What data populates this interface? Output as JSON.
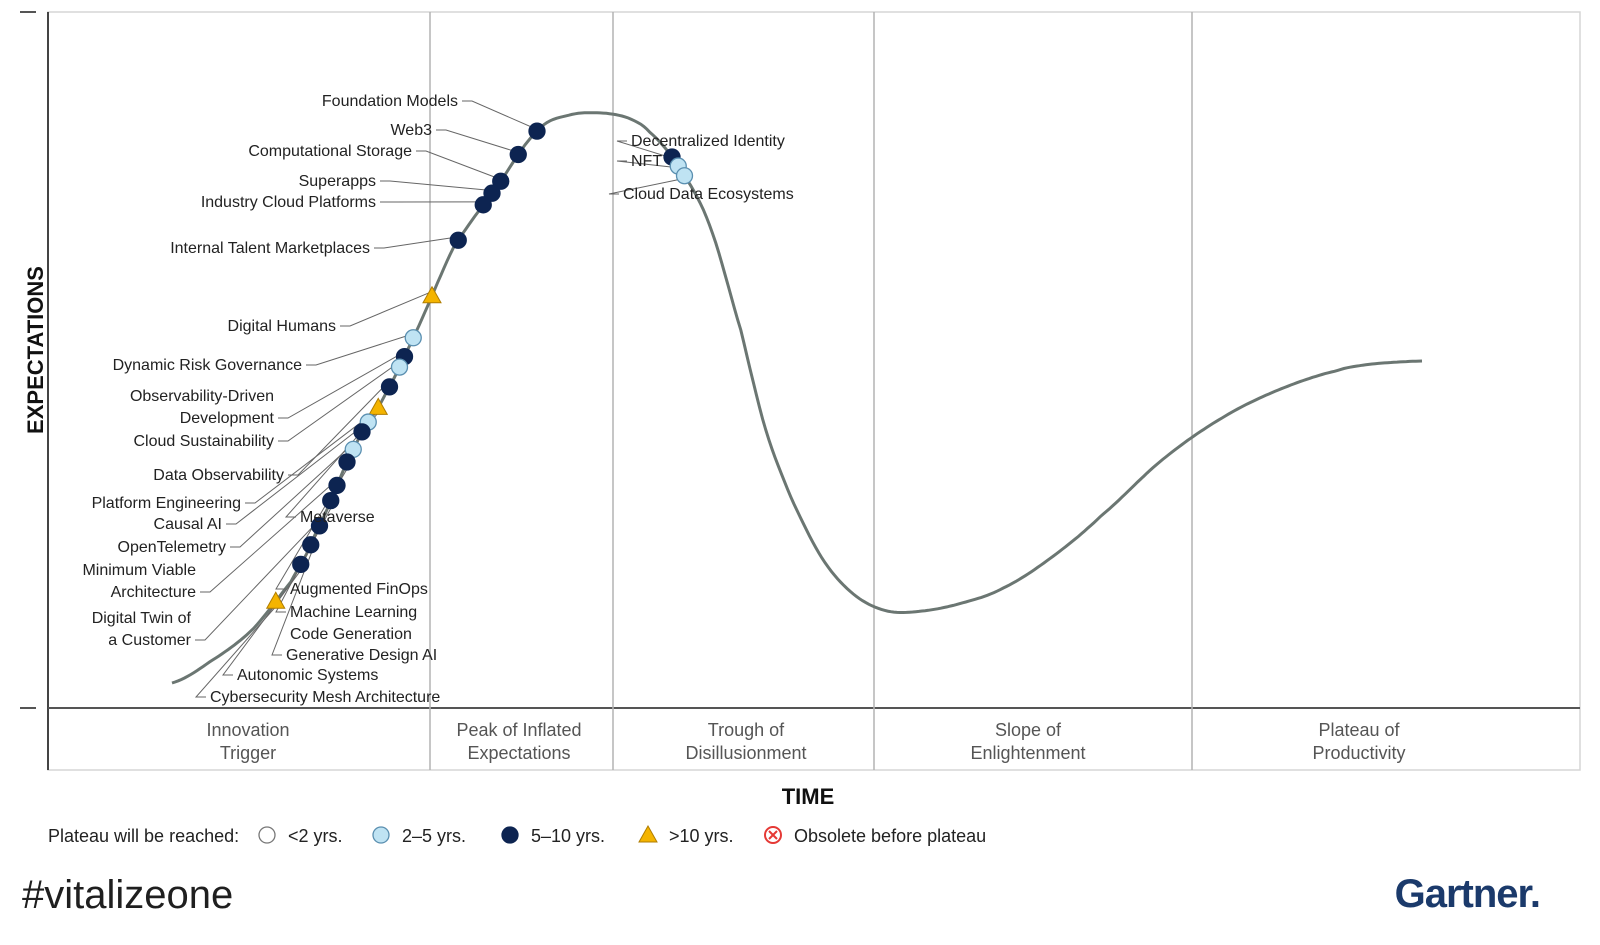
{
  "chart_data": {
    "type": "scatter",
    "title": "",
    "xlabel": "TIME",
    "ylabel": "EXPECTATIONS",
    "phases": [
      "Innovation\nTrigger",
      "Peak of Inflated\nExpectations",
      "Trough of\nDisillusionment",
      "Slope of\nEnlightenment",
      "Plateau of\nProductivity"
    ],
    "legend_title": "Plateau will be reached:",
    "legend": [
      {
        "key": "lt2",
        "label": "<2 yrs.",
        "marker": "circle",
        "color": "#ffffff"
      },
      {
        "key": "2to5",
        "label": "2–5 yrs.",
        "marker": "circle",
        "color": "#bfe3f3"
      },
      {
        "key": "5to10",
        "label": "5–10 yrs.",
        "marker": "circle",
        "color": "#0d2451"
      },
      {
        "key": "gt10",
        "label": ">10 yrs.",
        "marker": "triangle",
        "color": "#f4b400"
      },
      {
        "key": "obsolete",
        "label": "Obsolete before plateau",
        "marker": "x-circle",
        "color": "#e53935"
      }
    ],
    "points": [
      {
        "name": "Foundation Models",
        "t": 0.292,
        "cat": "5to10",
        "side": "left"
      },
      {
        "name": "Web3",
        "t": 0.277,
        "cat": "5to10",
        "side": "left"
      },
      {
        "name": "Computational Storage",
        "t": 0.263,
        "cat": "5to10",
        "side": "left"
      },
      {
        "name": "Superapps",
        "t": 0.256,
        "cat": "5to10",
        "side": "left"
      },
      {
        "name": "Industry Cloud Platforms",
        "t": 0.249,
        "cat": "5to10",
        "side": "left"
      },
      {
        "name": "Internal Talent Marketplaces",
        "t": 0.229,
        "cat": "5to10",
        "side": "left"
      },
      {
        "name": "Digital Humans",
        "t": 0.208,
        "cat": "gt10",
        "side": "left"
      },
      {
        "name": "Dynamic Risk Governance",
        "t": 0.193,
        "cat": "2to5",
        "side": "left"
      },
      {
        "name": "Observability-Driven\nDevelopment",
        "t": 0.186,
        "cat": "5to10",
        "side": "left"
      },
      {
        "name": "Cloud Sustainability",
        "t": 0.182,
        "cat": "2to5",
        "side": "left"
      },
      {
        "name": "Data Observability",
        "t": 0.174,
        "cat": "5to10",
        "side": "left"
      },
      {
        "name": "Metaverse",
        "t": 0.165,
        "cat": "gt10",
        "side": "right"
      },
      {
        "name": "Platform Engineering",
        "t": 0.157,
        "cat": "2to5",
        "side": "left"
      },
      {
        "name": "Causal AI",
        "t": 0.152,
        "cat": "5to10",
        "side": "left"
      },
      {
        "name": "OpenTelemetry",
        "t": 0.145,
        "cat": "2to5",
        "side": "left"
      },
      {
        "name": "Augmented FinOps",
        "t": 0.14,
        "cat": "5to10",
        "side": "right"
      },
      {
        "name": "Minimum Viable\nArchitecture",
        "t": 0.132,
        "cat": "5to10",
        "side": "left"
      },
      {
        "name": "Machine Learning\nCode Generation",
        "t": 0.127,
        "cat": "5to10",
        "side": "right"
      },
      {
        "name": "Digital Twin of\na Customer",
        "t": 0.118,
        "cat": "5to10",
        "side": "left"
      },
      {
        "name": "Generative Design AI",
        "t": 0.111,
        "cat": "5to10",
        "side": "right"
      },
      {
        "name": "Autonomic Systems",
        "t": 0.103,
        "cat": "5to10",
        "side": "right"
      },
      {
        "name": "Cybersecurity Mesh Architecture",
        "t": 0.083,
        "cat": "gt10",
        "side": "right"
      },
      {
        "name": "Decentralized Identity",
        "t": 0.4,
        "cat": "5to10",
        "side": "right"
      },
      {
        "name": "NFT",
        "t": 0.405,
        "cat": "2to5",
        "side": "right"
      },
      {
        "name": "Cloud Data Ecosystems",
        "t": 0.41,
        "cat": "2to5",
        "side": "right"
      }
    ]
  },
  "footer": {
    "hashtag": "#vitalizeone",
    "brand": "Gartner."
  }
}
